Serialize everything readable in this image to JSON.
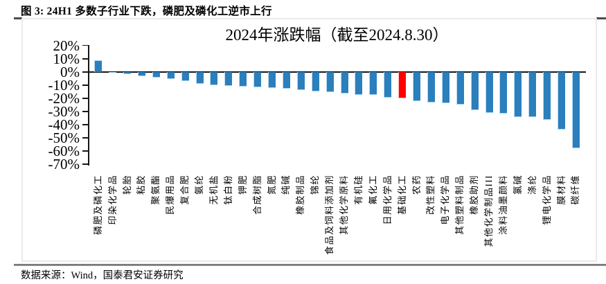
{
  "figure": {
    "header": "图 3:  24H1 多数子行业下跌，磷肥及磷化工逆市上行",
    "source": "数据来源：Wind，国泰君安证券研究"
  },
  "chart_data": {
    "type": "bar",
    "title": "2024年涨跌幅（截至2024.8.30）",
    "xlabel": "",
    "ylabel": "",
    "ylim": [
      -70,
      20
    ],
    "grid": false,
    "yticks": [
      20,
      10,
      0,
      -10,
      -20,
      -30,
      -40,
      -50,
      -60,
      -70
    ],
    "ytick_suffix": "%",
    "categories": [
      "磷肥及磷化工",
      "印染化学品",
      "轮胎",
      "粘胶",
      "聚氨酯",
      "民爆用品",
      "复合肥",
      "氨纶",
      "无机盐",
      "钛白粉",
      "钾肥",
      "合成树脂",
      "氮肥",
      "纯碱",
      "橡胶制品",
      "锦纶",
      "食品及饲料添加剂",
      "其他化学原料",
      "有机硅",
      "氟化工",
      "日用化学品",
      "基础化工",
      "农药",
      "改性塑料",
      "电子化学品",
      "其他塑料制品",
      "橡胶助剂",
      "其他化学制品III",
      "涂料油墨颜料",
      "氯碱",
      "涤纶",
      "锂电化学品",
      "膜材料",
      "碳纤维"
    ],
    "values": [
      9.0,
      -0.9,
      -1.8,
      -3.3,
      -4.2,
      -5.6,
      -6.8,
      -8.9,
      -10.3,
      -10.7,
      -11.0,
      -11.6,
      -12.1,
      -13.0,
      -13.8,
      -14.7,
      -15.2,
      -16.5,
      -17.3,
      -17.7,
      -19.5,
      -20.1,
      -22.3,
      -23.1,
      -23.9,
      -24.7,
      -29.0,
      -31.0,
      -31.5,
      -34.1,
      -34.5,
      -36.2,
      -43.6,
      -57.9
    ],
    "bar_color": "#2b7fbc",
    "highlight_color": "#ff0000",
    "highlight_index": 21,
    "highlight_category": "基础化工",
    "axis_color": "#161616"
  }
}
